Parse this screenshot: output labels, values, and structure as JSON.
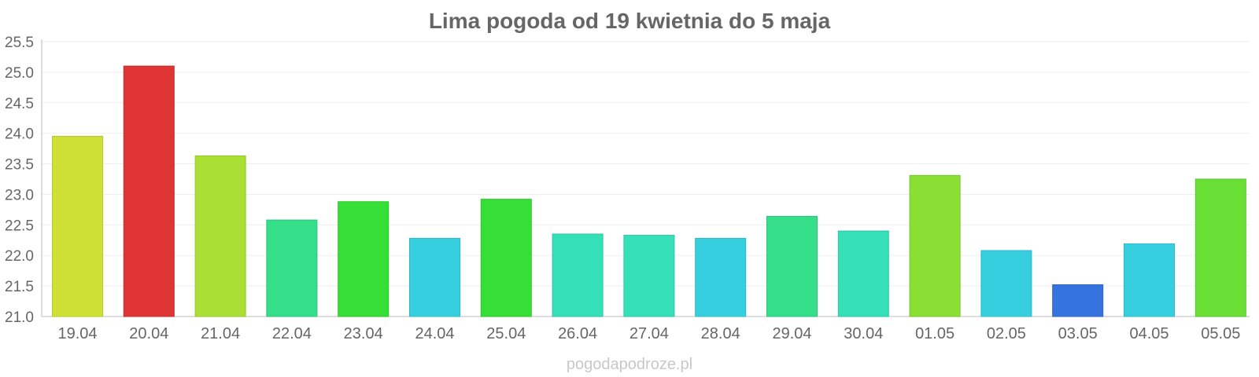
{
  "chart_data": {
    "type": "bar",
    "title": "Lima pogoda od 19 kwietnia do 5 maja",
    "xlabel": "",
    "ylabel": "",
    "ylim": [
      21.0,
      25.5
    ],
    "yticks": [
      "21.0",
      "21.5",
      "22.0",
      "22.5",
      "23.0",
      "23.5",
      "24.0",
      "24.5",
      "25.0",
      "25.5"
    ],
    "grid": true,
    "legend": "none",
    "categories": [
      "19.04",
      "20.04",
      "21.04",
      "22.04",
      "23.04",
      "24.04",
      "25.04",
      "26.04",
      "27.04",
      "28.04",
      "29.04",
      "30.04",
      "01.05",
      "02.05",
      "03.05",
      "04.05",
      "05.05"
    ],
    "values": [
      23.95,
      25.1,
      23.63,
      22.58,
      22.88,
      22.28,
      22.92,
      22.35,
      22.33,
      22.28,
      22.64,
      22.4,
      23.31,
      22.08,
      21.52,
      22.19,
      23.25
    ],
    "colors": [
      "#cedf35",
      "#df3535",
      "#aadf35",
      "#35df8a",
      "#35df35",
      "#35cfdf",
      "#35df35",
      "#35dfb7",
      "#35dfb7",
      "#35cfdf",
      "#35df8a",
      "#35dfb7",
      "#8adf35",
      "#35cfdf",
      "#3573df",
      "#35cfdf",
      "#6adf35"
    ],
    "edge_colors": [
      "#b8c82a",
      "#c42c2c",
      "#93c82a",
      "#2cc677",
      "#2cc62c",
      "#2cb8c6",
      "#2cc62c",
      "#2cc6a2",
      "#2cc6a2",
      "#2cb8c6",
      "#2cc677",
      "#2cc6a2",
      "#77c62c",
      "#2cb8c6",
      "#2c63c6",
      "#2cb8c6",
      "#5bc62c"
    ]
  },
  "watermark": "pogodapodroze.pl"
}
